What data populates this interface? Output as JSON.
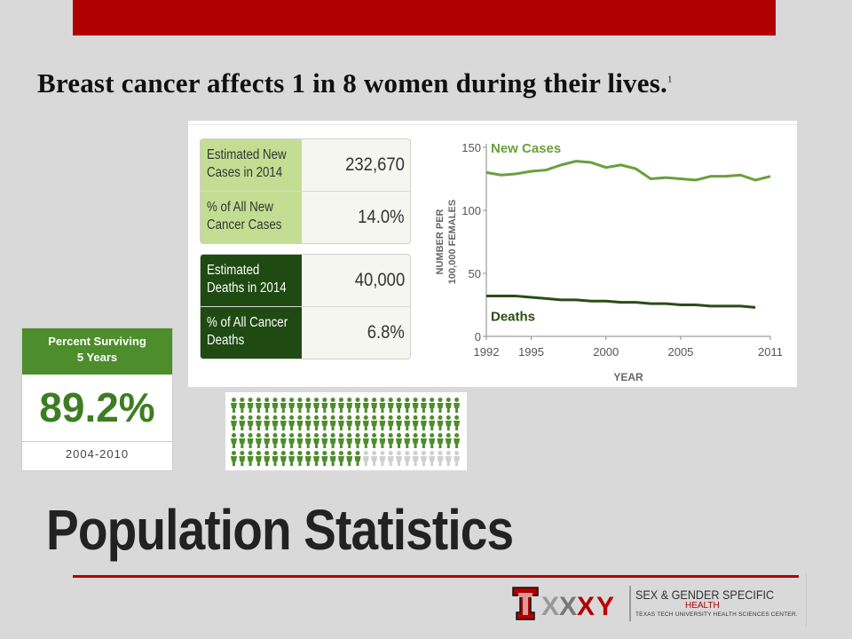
{
  "headline": {
    "text": "Breast cancer affects 1 in 8 women during their lives.",
    "footnote": "1"
  },
  "stats_table": {
    "new_cases": [
      {
        "label": "Estimated New Cases in 2014",
        "value": "232,670"
      },
      {
        "label": "% of All New Cancer Cases",
        "value": "14.0%"
      }
    ],
    "deaths": [
      {
        "label": "Estimated Deaths in 2014",
        "value": "40,000"
      },
      {
        "label": "% of All Cancer Deaths",
        "value": "6.8%"
      }
    ]
  },
  "survival": {
    "header": "Percent Surviving 5 Years",
    "value": "89.2%",
    "years": "2004-2010"
  },
  "people_graphic": {
    "total": 112,
    "filled": 100,
    "filled_color": "#4e8d2c",
    "empty_color": "#cfcfcf"
  },
  "chart_data": {
    "type": "line",
    "ylabel": "NUMBER PER 100,000 FEMALES",
    "xlabel": "YEAR",
    "ylim": [
      0,
      150
    ],
    "xlim": [
      1992,
      2011
    ],
    "yticks": [
      0,
      50,
      100,
      150
    ],
    "xticks": [
      1992,
      1995,
      2000,
      2005,
      2011
    ],
    "grid": false,
    "series": [
      {
        "name": "New Cases",
        "color": "#6a9f3b",
        "x": [
          1992,
          1993,
          1994,
          1995,
          1996,
          1997,
          1998,
          1999,
          2000,
          2001,
          2002,
          2003,
          2004,
          2005,
          2006,
          2007,
          2008,
          2009,
          2010,
          2011
        ],
        "y": [
          130,
          128,
          129,
          131,
          132,
          136,
          139,
          138,
          134,
          136,
          133,
          125,
          126,
          125,
          124,
          127,
          127,
          128,
          124,
          127
        ]
      },
      {
        "name": "Deaths",
        "color": "#2a4d16",
        "x": [
          1992,
          1993,
          1994,
          1995,
          1996,
          1997,
          1998,
          1999,
          2000,
          2001,
          2002,
          2003,
          2004,
          2005,
          2006,
          2007,
          2008,
          2009,
          2010
        ],
        "y": [
          32,
          32,
          32,
          31,
          30,
          29,
          29,
          28,
          28,
          27,
          27,
          26,
          26,
          25,
          25,
          24,
          24,
          24,
          23
        ]
      }
    ]
  },
  "title": "Population Statistics",
  "logo": {
    "line1": "SEX & GENDER SPECIFIC",
    "line2": "HEALTH",
    "line3": "TEXAS TECH UNIVERSITY HEALTH SCIENCES CENTER."
  },
  "colors": {
    "accent_red": "#b00000",
    "light_green": "#c3de93",
    "dark_green": "#1f4a12"
  }
}
